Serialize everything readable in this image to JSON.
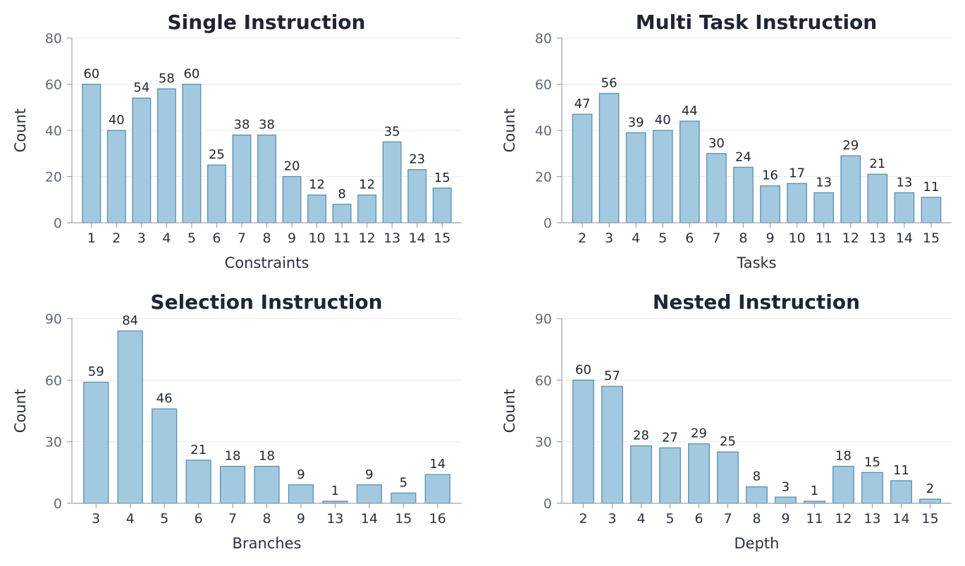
{
  "chart_data": [
    {
      "type": "bar",
      "title": "Single Instruction",
      "xlabel": "Constraints",
      "ylabel": "Count",
      "ylim": [
        0,
        80
      ],
      "yticks": [
        0,
        20,
        40,
        60,
        80
      ],
      "categories": [
        "1",
        "2",
        "3",
        "4",
        "5",
        "6",
        "7",
        "8",
        "9",
        "10",
        "11",
        "12",
        "13",
        "14",
        "15"
      ],
      "values": [
        60,
        40,
        54,
        58,
        60,
        25,
        38,
        38,
        20,
        12,
        8,
        12,
        35,
        23,
        15
      ],
      "grid": true,
      "bar_color": "#a3c9e0"
    },
    {
      "type": "bar",
      "title": "Multi Task Instruction",
      "xlabel": "Tasks",
      "ylabel": "Count",
      "ylim": [
        0,
        80
      ],
      "yticks": [
        0,
        20,
        40,
        60,
        80
      ],
      "categories": [
        "2",
        "3",
        "4",
        "5",
        "6",
        "7",
        "8",
        "9",
        "10",
        "11",
        "12",
        "13",
        "14",
        "15"
      ],
      "values": [
        47,
        56,
        39,
        40,
        44,
        30,
        24,
        16,
        17,
        13,
        29,
        21,
        13,
        11
      ],
      "grid": true,
      "bar_color": "#a3c9e0"
    },
    {
      "type": "bar",
      "title": "Selection Instruction",
      "xlabel": "Branches",
      "ylabel": "Count",
      "ylim": [
        0,
        90
      ],
      "yticks": [
        0,
        30,
        60,
        90
      ],
      "categories": [
        "3",
        "4",
        "5",
        "6",
        "7",
        "8",
        "9",
        "13",
        "14",
        "15",
        "16"
      ],
      "values": [
        59,
        84,
        46,
        21,
        18,
        18,
        9,
        1,
        9,
        5,
        14
      ],
      "grid": true,
      "bar_color": "#a3c9e0"
    },
    {
      "type": "bar",
      "title": "Nested Instruction",
      "xlabel": "Depth",
      "ylabel": "Count",
      "ylim": [
        0,
        90
      ],
      "yticks": [
        0,
        30,
        60,
        90
      ],
      "categories": [
        "2",
        "3",
        "4",
        "5",
        "6",
        "7",
        "8",
        "9",
        "11",
        "12",
        "13",
        "14",
        "15"
      ],
      "values": [
        60,
        57,
        28,
        27,
        29,
        25,
        8,
        3,
        1,
        18,
        15,
        11,
        2
      ],
      "grid": true,
      "bar_color": "#a3c9e0"
    }
  ]
}
